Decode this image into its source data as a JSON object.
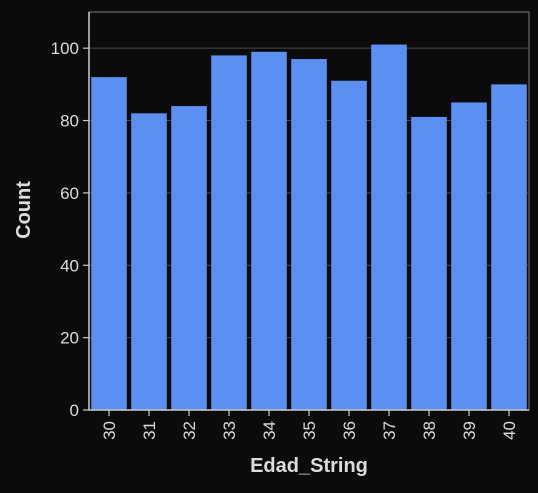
{
  "chart_data": {
    "type": "bar",
    "categories": [
      "30",
      "31",
      "32",
      "33",
      "34",
      "35",
      "36",
      "37",
      "38",
      "39",
      "40"
    ],
    "values": [
      92,
      82,
      84,
      98,
      99,
      97,
      91,
      101,
      81,
      85,
      90
    ],
    "title": "",
    "xlabel": "Edad_String",
    "ylabel": "Count",
    "ylim": [
      0,
      110
    ],
    "yticks": [
      0,
      20,
      40,
      60,
      80,
      100
    ],
    "grid": true,
    "colors": {
      "bar": "#5b8ff0",
      "background": "#0b0b0d",
      "grid": "#4a4a4e",
      "axis": "#c8c8c8",
      "text": "#dcdcdc"
    }
  }
}
